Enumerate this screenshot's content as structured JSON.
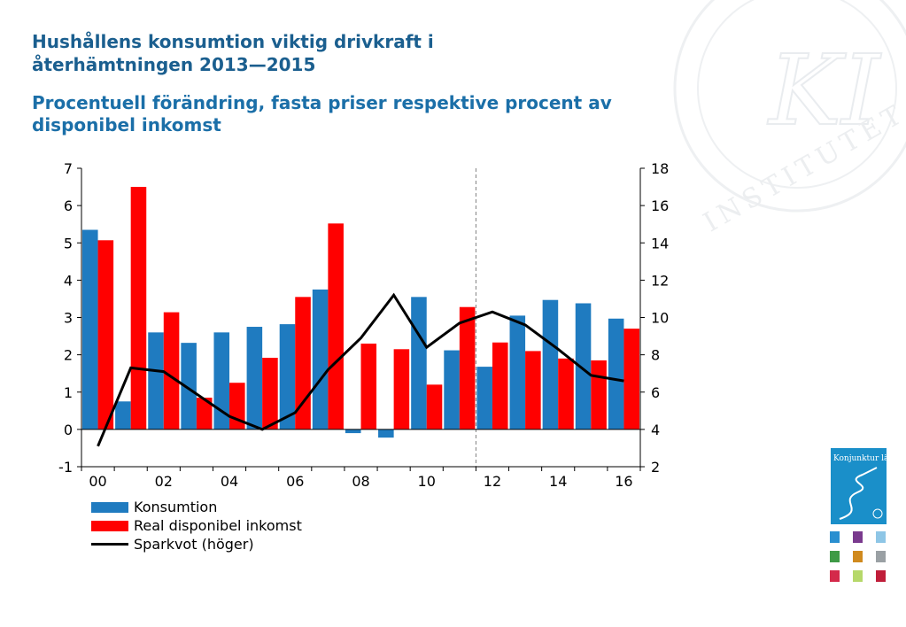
{
  "title": "Hushållens konsumtion viktig drivkraft i återhämtningen 2013—2015",
  "subtitle": "Procentuell förändring, fasta priser respektive procent av disponibel inkomst",
  "chart_data": {
    "type": "bar",
    "categories": [
      "00",
      "01",
      "02",
      "03",
      "04",
      "05",
      "06",
      "07",
      "08",
      "09",
      "10",
      "11",
      "12",
      "13",
      "14",
      "15",
      "16"
    ],
    "x_tick_labels": [
      "00",
      "02",
      "04",
      "06",
      "08",
      "10",
      "12",
      "14",
      "16"
    ],
    "series": [
      {
        "name": "Konsumtion",
        "type": "bar",
        "axis": "left",
        "color": "#1f7bc0",
        "values": [
          5.35,
          0.75,
          2.6,
          2.32,
          2.6,
          2.75,
          2.82,
          3.75,
          -0.1,
          -0.22,
          3.55,
          2.12,
          1.68,
          3.05,
          3.47,
          3.38,
          2.97
        ]
      },
      {
        "name": "Real disponibel inkomst",
        "type": "bar",
        "axis": "left",
        "color": "#ff0000",
        "values": [
          5.07,
          6.5,
          3.14,
          0.85,
          1.25,
          1.92,
          3.55,
          5.52,
          2.3,
          2.15,
          1.2,
          3.28,
          2.33,
          2.1,
          1.9,
          1.85,
          2.7
        ]
      },
      {
        "name": "Sparkvot (höger)",
        "type": "line",
        "axis": "right",
        "color": "#000000",
        "values": [
          3.1,
          7.3,
          7.1,
          5.9,
          4.7,
          4.0,
          4.9,
          7.2,
          8.9,
          11.2,
          8.4,
          9.7,
          10.3,
          9.6,
          8.3,
          6.9,
          6.6
        ]
      }
    ],
    "y_left": {
      "min": -1,
      "max": 7,
      "ticks": [
        -1,
        0,
        1,
        2,
        3,
        4,
        5,
        6,
        7
      ]
    },
    "y_right": {
      "min": 2,
      "max": 18,
      "ticks": [
        2,
        4,
        6,
        8,
        10,
        12,
        14,
        16,
        18
      ]
    },
    "forecast_divider_after": "11",
    "legend_position": "bottom-left",
    "grid": false
  },
  "branding": {
    "cover_text": "Konjunktur läget",
    "watermark_text": "INSTITUTET",
    "watermark_letters": "KI",
    "cover_color": "#1a8fc9"
  }
}
